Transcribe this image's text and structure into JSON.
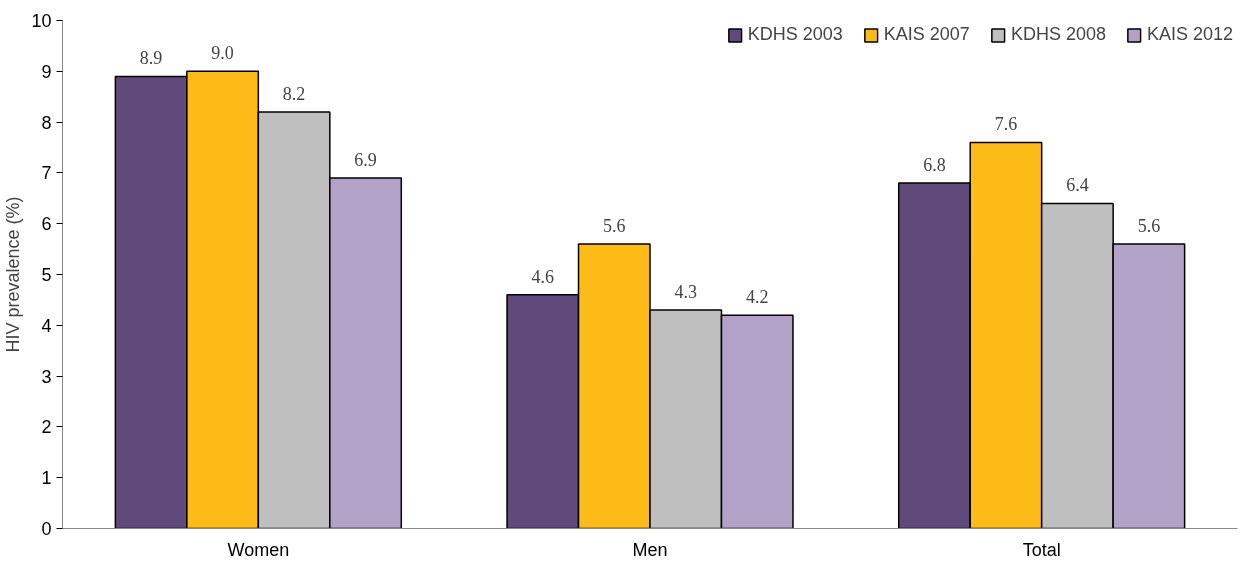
{
  "chart_data": {
    "type": "bar",
    "ylabel": "HIV prevalence (%)",
    "categories": [
      "Women",
      "Men",
      "Total"
    ],
    "series": [
      {
        "name": "KDHS 2003",
        "color": "#604a7b",
        "values": [
          8.9,
          4.6,
          6.8
        ],
        "value_labels": [
          "8.9",
          "4.6",
          "6.8"
        ]
      },
      {
        "name": "KAIS 2007",
        "color": "#fdbb17",
        "values": [
          9.0,
          5.6,
          7.6
        ],
        "value_labels": [
          "9.0",
          "5.6",
          "7.6"
        ]
      },
      {
        "name": "KDHS 2008",
        "color": "#bfbfbf",
        "values": [
          8.2,
          4.3,
          6.4
        ],
        "value_labels": [
          "8.2",
          "4.3",
          "6.4"
        ]
      },
      {
        "name": "KAIS 2012",
        "color": "#b3a2c7",
        "values": [
          6.9,
          4.2,
          5.6
        ],
        "value_labels": [
          "6.9",
          "4.2",
          "5.6"
        ]
      }
    ],
    "ylim": [
      0,
      10
    ],
    "yticks": [
      0,
      1,
      2,
      3,
      4,
      5,
      6,
      7,
      8,
      9,
      10
    ],
    "grid": false,
    "legend": "top right"
  }
}
